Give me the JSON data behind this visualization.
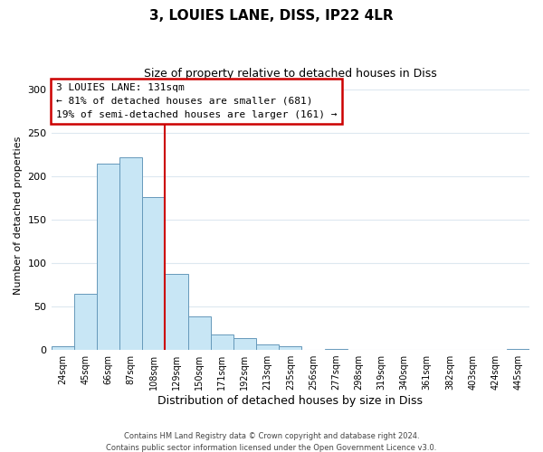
{
  "title": "3, LOUIES LANE, DISS, IP22 4LR",
  "subtitle": "Size of property relative to detached houses in Diss",
  "xlabel": "Distribution of detached houses by size in Diss",
  "ylabel": "Number of detached properties",
  "bin_labels": [
    "24sqm",
    "45sqm",
    "66sqm",
    "87sqm",
    "108sqm",
    "129sqm",
    "150sqm",
    "171sqm",
    "192sqm",
    "213sqm",
    "235sqm",
    "256sqm",
    "277sqm",
    "298sqm",
    "319sqm",
    "340sqm",
    "361sqm",
    "382sqm",
    "403sqm",
    "424sqm",
    "445sqm"
  ],
  "bar_heights": [
    4,
    65,
    214,
    222,
    176,
    88,
    39,
    18,
    14,
    6,
    4,
    0,
    1,
    0,
    0,
    0,
    0,
    0,
    0,
    0,
    1
  ],
  "bar_color": "#c8e6f5",
  "bar_edge_color": "#6699bb",
  "vline_color": "#cc0000",
  "annotation_title": "3 LOUIES LANE: 131sqm",
  "annotation_line1": "← 81% of detached houses are smaller (681)",
  "annotation_line2": "19% of semi-detached houses are larger (161) →",
  "annotation_box_color": "#cc0000",
  "ylim": [
    0,
    310
  ],
  "yticks": [
    0,
    50,
    100,
    150,
    200,
    250,
    300
  ],
  "footer1": "Contains HM Land Registry data © Crown copyright and database right 2024.",
  "footer2": "Contains public sector information licensed under the Open Government Licence v3.0."
}
